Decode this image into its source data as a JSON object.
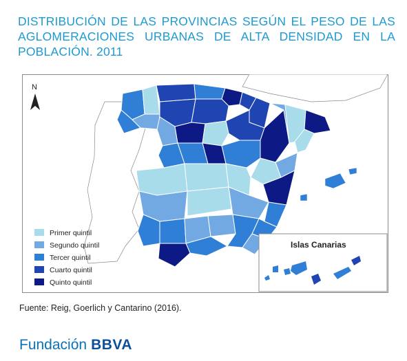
{
  "title": "DISTRIBUCIÓN DE LAS PROVINCIAS SEGÚN EL PESO DE LAS AGLOMERACIONES URBANAS DE ALTA DENSIDAD EN LA POBLACIÓN. 2011",
  "north_label": "N",
  "inset_label": "Islas Canarias",
  "legend": [
    {
      "label": "Primer quintil",
      "color": "#a8dcea"
    },
    {
      "label": "Segundo quintil",
      "color": "#73a9e3"
    },
    {
      "label": "Tercer quintil",
      "color": "#2f7fd6"
    },
    {
      "label": "Cuarto quintil",
      "color": "#1f45b3"
    },
    {
      "label": "Quinto quintil",
      "color": "#0d1a86"
    }
  ],
  "source": "Fuente: Reig, Goerlich y Cantarino (2016).",
  "brand": {
    "name": "Fundación",
    "bold": "BBVA"
  }
}
